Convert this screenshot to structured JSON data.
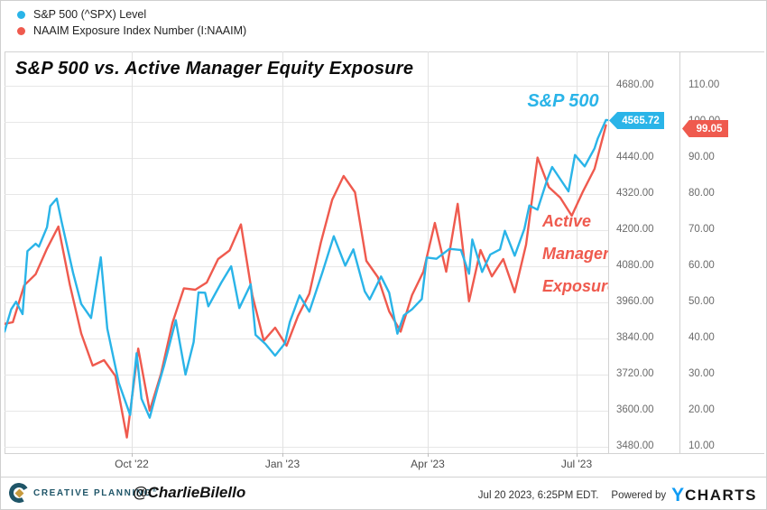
{
  "legend": {
    "items": [
      {
        "label": "S&P 500 (^SPX) Level",
        "color": "#2ab4e8"
      },
      {
        "label": "NAAIM Exposure Index Number (I:NAAIM)",
        "color": "#ef5a4e"
      }
    ]
  },
  "chart": {
    "title": "S&P 500 vs. Active Manager Equity Exposure",
    "annotations": {
      "sp500": {
        "text": "S&P 500",
        "color": "#2ab4e8"
      },
      "naaim": {
        "line1": "Active",
        "line2": "Manager",
        "line3": "Exposure",
        "color": "#ef5a4e"
      }
    },
    "badges": {
      "spx": {
        "value": "4565.72",
        "color": "#2ab4e8"
      },
      "naaim": {
        "value": "99.05",
        "color": "#ef5a4e"
      }
    }
  },
  "chart_data": {
    "type": "line",
    "title": "S&P 500 vs. Active Manager Equity Exposure",
    "grid": true,
    "legend_position": "top-left",
    "x_axis": {
      "tick_labels": [
        "Oct '22",
        "Jan '23",
        "Apr '23",
        "Jul '23"
      ],
      "tick_dates": [
        "2022-10-01",
        "2023-01-01",
        "2023-04-01",
        "2023-07-01"
      ],
      "range": [
        "2022-07-15",
        "2023-07-20"
      ]
    },
    "y_axis_spx": {
      "side": "right-inner",
      "ticks": [
        4680,
        4560,
        4440,
        4320,
        4200,
        4080,
        3960,
        3840,
        3720,
        3600,
        3480
      ],
      "ylim": [
        3459,
        4794
      ],
      "tick_format": "0.00"
    },
    "y_axis_naaim": {
      "side": "right-outer",
      "ticks": [
        110,
        100,
        90,
        80,
        70,
        60,
        50,
        40,
        30,
        20,
        10
      ],
      "ylim": [
        8.25,
        119.5
      ],
      "tick_format": "0.00"
    },
    "series": [
      {
        "name": "S&P 500 (^SPX) Level",
        "axis": "y_axis_spx",
        "color": "#2ab4e8",
        "last_value": 4565.72,
        "points": [
          [
            "2022-07-15",
            3863
          ],
          [
            "2022-07-19",
            3937
          ],
          [
            "2022-07-22",
            3962
          ],
          [
            "2022-07-26",
            3921
          ],
          [
            "2022-07-29",
            4130
          ],
          [
            "2022-08-03",
            4155
          ],
          [
            "2022-08-05",
            4145
          ],
          [
            "2022-08-10",
            4210
          ],
          [
            "2022-08-12",
            4280
          ],
          [
            "2022-08-16",
            4305
          ],
          [
            "2022-08-19",
            4228
          ],
          [
            "2022-08-26",
            4058
          ],
          [
            "2022-08-31",
            3955
          ],
          [
            "2022-09-06",
            3908
          ],
          [
            "2022-09-12",
            4110
          ],
          [
            "2022-09-16",
            3873
          ],
          [
            "2022-09-23",
            3693
          ],
          [
            "2022-09-30",
            3586
          ],
          [
            "2022-10-04",
            3791
          ],
          [
            "2022-10-07",
            3640
          ],
          [
            "2022-10-12",
            3577
          ],
          [
            "2022-10-17",
            3678
          ],
          [
            "2022-10-21",
            3753
          ],
          [
            "2022-10-28",
            3901
          ],
          [
            "2022-11-03",
            3720
          ],
          [
            "2022-11-08",
            3828
          ],
          [
            "2022-11-11",
            3993
          ],
          [
            "2022-11-15",
            3992
          ],
          [
            "2022-11-17",
            3947
          ],
          [
            "2022-11-25",
            4026
          ],
          [
            "2022-12-01",
            4080
          ],
          [
            "2022-12-06",
            3941
          ],
          [
            "2022-12-13",
            4020
          ],
          [
            "2022-12-16",
            3852
          ],
          [
            "2022-12-22",
            3822
          ],
          [
            "2022-12-28",
            3783
          ],
          [
            "2023-01-03",
            3824
          ],
          [
            "2023-01-06",
            3895
          ],
          [
            "2023-01-12",
            3983
          ],
          [
            "2023-01-18",
            3929
          ],
          [
            "2023-01-26",
            4060
          ],
          [
            "2023-02-02",
            4180
          ],
          [
            "2023-02-09",
            4082
          ],
          [
            "2023-02-14",
            4136
          ],
          [
            "2023-02-21",
            3997
          ],
          [
            "2023-02-24",
            3970
          ],
          [
            "2023-03-03",
            4046
          ],
          [
            "2023-03-08",
            3992
          ],
          [
            "2023-03-13",
            3856
          ],
          [
            "2023-03-17",
            3917
          ],
          [
            "2023-03-22",
            3937
          ],
          [
            "2023-03-28",
            3971
          ],
          [
            "2023-03-31",
            4109
          ],
          [
            "2023-04-06",
            4105
          ],
          [
            "2023-04-14",
            4138
          ],
          [
            "2023-04-21",
            4134
          ],
          [
            "2023-04-26",
            4055
          ],
          [
            "2023-04-28",
            4169
          ],
          [
            "2023-05-04",
            4061
          ],
          [
            "2023-05-09",
            4119
          ],
          [
            "2023-05-15",
            4136
          ],
          [
            "2023-05-18",
            4198
          ],
          [
            "2023-05-24",
            4115
          ],
          [
            "2023-05-30",
            4205
          ],
          [
            "2023-06-02",
            4282
          ],
          [
            "2023-06-07",
            4268
          ],
          [
            "2023-06-13",
            4369
          ],
          [
            "2023-06-16",
            4410
          ],
          [
            "2023-06-26",
            4329
          ],
          [
            "2023-06-30",
            4450
          ],
          [
            "2023-07-06",
            4412
          ],
          [
            "2023-07-12",
            4472
          ],
          [
            "2023-07-14",
            4505
          ],
          [
            "2023-07-19",
            4566
          ],
          [
            "2023-07-20",
            4565.72
          ]
        ]
      },
      {
        "name": "NAAIM Exposure Index Number (I:NAAIM)",
        "axis": "y_axis_naaim",
        "color": "#ef5a4e",
        "last_value": 99.05,
        "points": [
          [
            "2022-07-13",
            43.9
          ],
          [
            "2022-07-20",
            44.5
          ],
          [
            "2022-07-27",
            54.7
          ],
          [
            "2022-08-03",
            57.8
          ],
          [
            "2022-08-10",
            64.9
          ],
          [
            "2022-08-17",
            71.0
          ],
          [
            "2022-08-24",
            54.9
          ],
          [
            "2022-08-31",
            41.4
          ],
          [
            "2022-09-07",
            32.5
          ],
          [
            "2022-09-14",
            34.0
          ],
          [
            "2022-09-21",
            29.6
          ],
          [
            "2022-09-28",
            12.6
          ],
          [
            "2022-10-05",
            37.2
          ],
          [
            "2022-10-12",
            20.0
          ],
          [
            "2022-10-19",
            30.3
          ],
          [
            "2022-10-26",
            44.3
          ],
          [
            "2022-11-02",
            53.9
          ],
          [
            "2022-11-09",
            53.5
          ],
          [
            "2022-11-16",
            55.5
          ],
          [
            "2022-11-23",
            62.0
          ],
          [
            "2022-11-30",
            64.4
          ],
          [
            "2022-12-07",
            71.6
          ],
          [
            "2022-12-14",
            52.0
          ],
          [
            "2022-12-21",
            39.4
          ],
          [
            "2022-12-28",
            43.0
          ],
          [
            "2023-01-04",
            38.0
          ],
          [
            "2023-01-11",
            46.2
          ],
          [
            "2023-01-18",
            52.4
          ],
          [
            "2023-01-25",
            66.5
          ],
          [
            "2023-02-01",
            78.4
          ],
          [
            "2023-02-08",
            85.0
          ],
          [
            "2023-02-15",
            80.5
          ],
          [
            "2023-02-22",
            61.5
          ],
          [
            "2023-03-01",
            57.0
          ],
          [
            "2023-03-08",
            47.5
          ],
          [
            "2023-03-15",
            41.9
          ],
          [
            "2023-03-22",
            52.0
          ],
          [
            "2023-03-29",
            58.5
          ],
          [
            "2023-04-05",
            72.0
          ],
          [
            "2023-04-12",
            58.5
          ],
          [
            "2023-04-19",
            77.3
          ],
          [
            "2023-04-26",
            50.3
          ],
          [
            "2023-05-03",
            64.5
          ],
          [
            "2023-05-10",
            57.2
          ],
          [
            "2023-05-17",
            62.0
          ],
          [
            "2023-05-24",
            52.8
          ],
          [
            "2023-05-31",
            66.0
          ],
          [
            "2023-06-07",
            90.1
          ],
          [
            "2023-06-14",
            81.9
          ],
          [
            "2023-06-21",
            79.0
          ],
          [
            "2023-06-28",
            74.0
          ],
          [
            "2023-07-05",
            80.8
          ],
          [
            "2023-07-12",
            87.0
          ],
          [
            "2023-07-19",
            99.05
          ]
        ]
      }
    ]
  },
  "footer": {
    "brand": "CREATIVE PLANNING",
    "brand_trademark": "®",
    "handle": "@CharlieBilello",
    "timestamp": "Jul 20 2023, 6:25PM EDT.",
    "powered_by": "Powered by",
    "ycharts_y": "Y",
    "ycharts_rest": "CHARTS"
  }
}
